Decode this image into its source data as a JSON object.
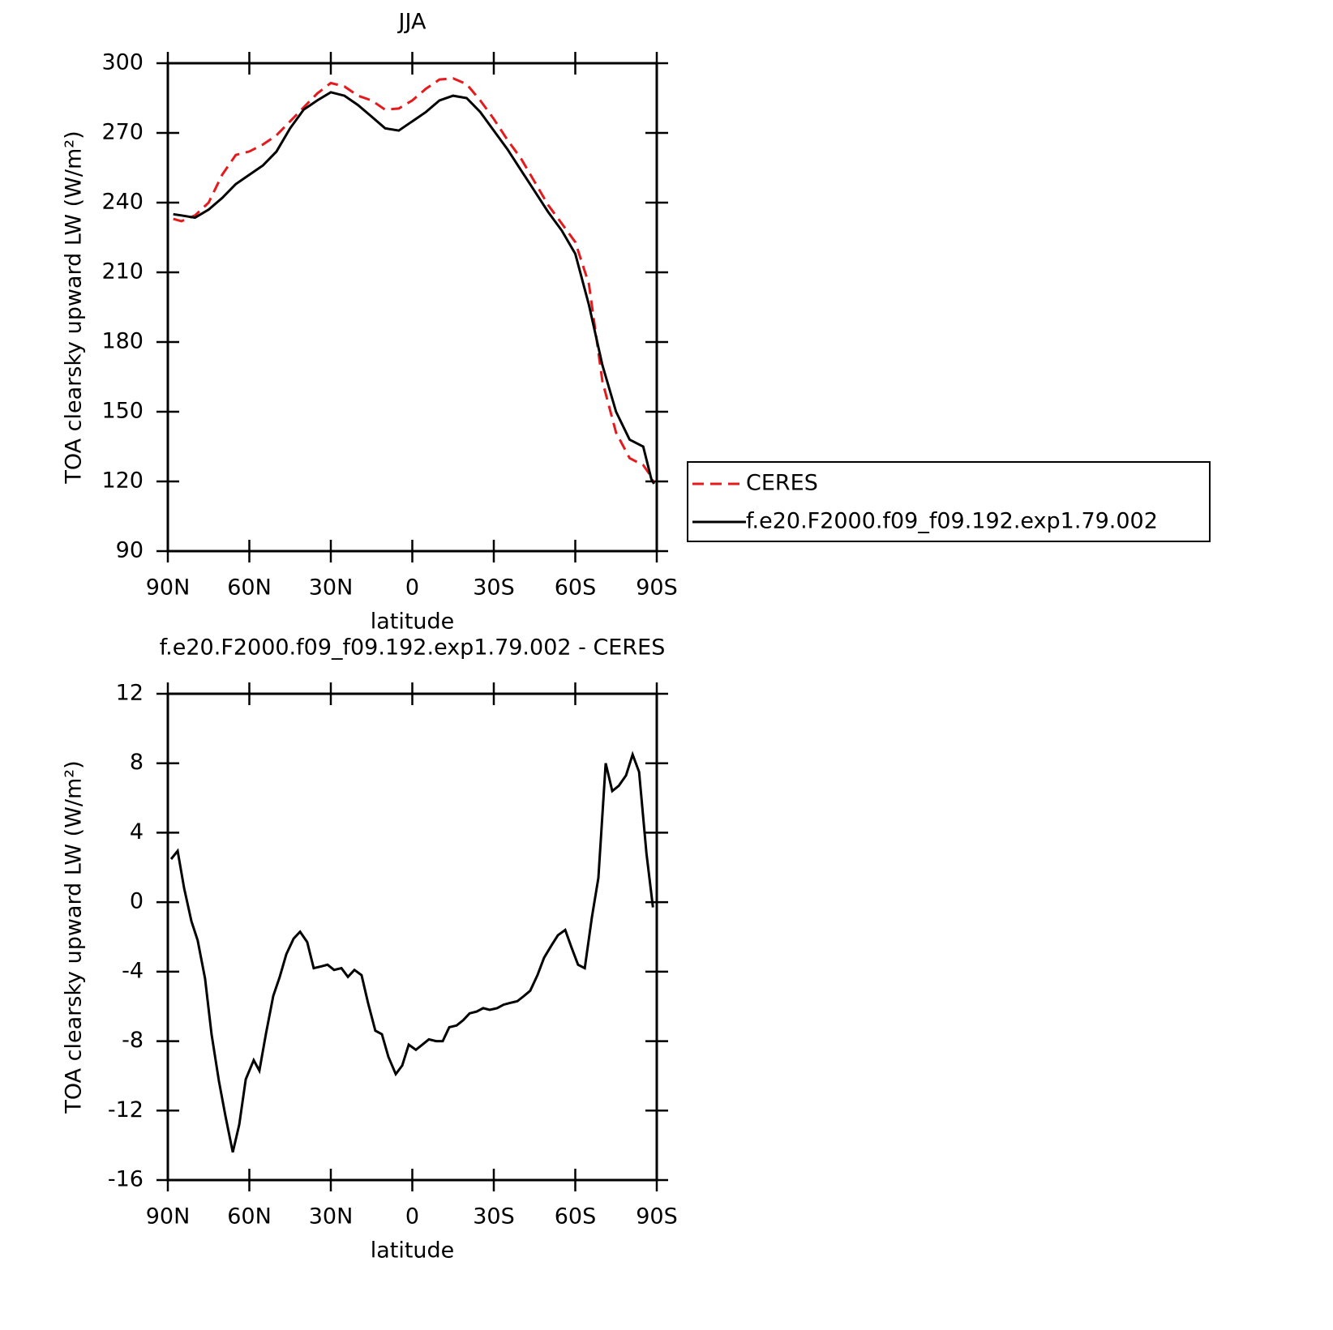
{
  "chart_data": [
    {
      "type": "line",
      "title": "JJA",
      "x_label": "latitude",
      "y_label": "TOA clearsky upward LW (W/m²)",
      "xlim": [
        90,
        -90
      ],
      "xticks": [
        {
          "value": 90,
          "label": "90N"
        },
        {
          "value": 60,
          "label": "60N"
        },
        {
          "value": 30,
          "label": "30N"
        },
        0,
        {
          "value": -30,
          "label": "30S"
        },
        {
          "value": -60,
          "label": "60S"
        },
        {
          "value": -90,
          "label": "90S"
        }
      ],
      "ylim": [
        90,
        300
      ],
      "yticks": [
        90,
        120,
        150,
        180,
        210,
        240,
        270,
        300
      ],
      "legend": "right",
      "x": [
        88,
        85,
        80,
        75,
        70,
        65,
        60,
        55,
        50,
        45,
        40,
        35,
        30,
        25,
        20,
        15,
        10,
        5,
        0,
        -5,
        -10,
        -15,
        -20,
        -25,
        -30,
        -35,
        -40,
        -45,
        -50,
        -55,
        -60,
        -65,
        -70,
        -75,
        -80,
        -85,
        -88,
        -89
      ],
      "series": [
        {
          "name": "CERES",
          "color": "#e41a1c",
          "style": "dashed",
          "values": [
            233,
            232,
            234.5,
            240,
            252,
            260.5,
            262,
            265,
            269,
            275,
            281,
            287,
            291.5,
            290,
            286,
            284,
            280,
            280.5,
            284,
            289,
            293,
            293.5,
            291,
            284,
            276,
            267,
            259,
            249,
            239,
            231,
            223,
            205,
            163,
            141,
            130,
            127,
            122,
            119
          ]
        },
        {
          "name": "f.e20.F2000.f09_f09.192.exp1.79.002",
          "color": "#000000",
          "style": "solid",
          "values": [
            235,
            234.5,
            233.5,
            237,
            242,
            248,
            252,
            256,
            262,
            272,
            280,
            284,
            287.5,
            286,
            282,
            277,
            272,
            271,
            275,
            279,
            284,
            286,
            285,
            279,
            271,
            263,
            254,
            245,
            236,
            228,
            218,
            196,
            170,
            150,
            138,
            135,
            121,
            119
          ]
        }
      ]
    },
    {
      "type": "line",
      "title": "f.e20.F2000.f09_f09.192.exp1.79.002 - CERES",
      "x_label": "latitude",
      "y_label": "TOA clearsky upward LW (W/m²)",
      "xlim": [
        90,
        -90
      ],
      "xticks": [
        {
          "value": 90,
          "label": "90N"
        },
        {
          "value": 60,
          "label": "60N"
        },
        {
          "value": 30,
          "label": "30N"
        },
        0,
        {
          "value": -30,
          "label": "30S"
        },
        {
          "value": -60,
          "label": "60S"
        },
        {
          "value": -90,
          "label": "90S"
        }
      ],
      "ylim": [
        -16,
        12
      ],
      "yticks": [
        -16,
        -12,
        -8,
        -4,
        0,
        4,
        8,
        12
      ],
      "x": [
        88.8,
        86.4,
        84,
        81.3,
        79,
        76.3,
        73.9,
        71.2,
        68.8,
        66.1,
        63.7,
        61.3,
        58.4,
        56.3,
        53.9,
        51.2,
        48.8,
        46.4,
        43.7,
        41.3,
        38.7,
        36.3,
        33.6,
        31.2,
        28.8,
        26.1,
        23.7,
        21.3,
        18.7,
        16.3,
        13.6,
        11.2,
        8.8,
        6.1,
        3.7,
        1.3,
        -1.3,
        -3.7,
        -6.1,
        -8.8,
        -11.2,
        -13.6,
        -16.3,
        -18.7,
        -21.1,
        -23.7,
        -26.1,
        -28.5,
        -31.2,
        -33.6,
        -36,
        -38.7,
        -41.1,
        -43.4,
        -46.1,
        -48.5,
        -51.2,
        -53.6,
        -56.3,
        -58.6,
        -61,
        -63.5,
        -66.1,
        -68.5,
        -71.2,
        -73.6,
        -76,
        -78.7,
        -81.1,
        -83.5,
        -86.2,
        -88.6
      ],
      "series": [
        {
          "color": "#000000",
          "style": "solid",
          "values": [
            2.48,
            2.95,
            0.8,
            -1.1,
            -2.2,
            -4.4,
            -7.6,
            -10.3,
            -12.3,
            -14.4,
            -12.8,
            -10.2,
            -9.1,
            -9.7,
            -7.6,
            -5.4,
            -4.3,
            -3,
            -2.1,
            -1.7,
            -2.3,
            -3.8,
            -3.7,
            -3.6,
            -3.9,
            -3.8,
            -4.3,
            -3.9,
            -4.2,
            -5.8,
            -7.4,
            -7.6,
            -8.9,
            -9.9,
            -9.4,
            -8.2,
            -8.5,
            -8.2,
            -7.9,
            -8,
            -8,
            -7.2,
            -7.1,
            -6.8,
            -6.4,
            -6.3,
            -6.1,
            -6.2,
            -6.1,
            -5.9,
            -5.8,
            -5.7,
            -5.4,
            -5.1,
            -4.2,
            -3.2,
            -2.5,
            -1.9,
            -1.6,
            -2.6,
            -3.6,
            -3.8,
            -0.9,
            1.4,
            8,
            6.4,
            6.7,
            7.3,
            8.5,
            7.5,
            2.8,
            -0.3
          ]
        }
      ]
    }
  ]
}
